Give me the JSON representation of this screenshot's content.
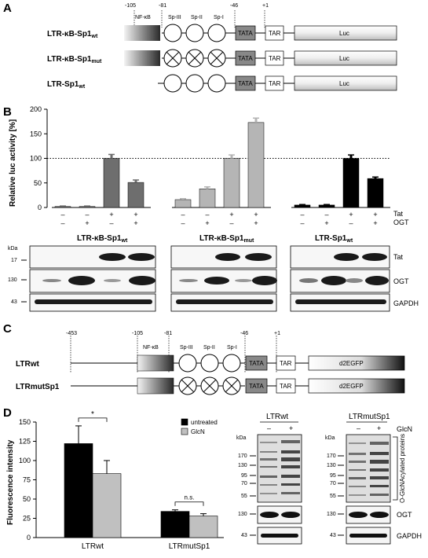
{
  "panel_labels": {
    "a": "A",
    "b": "B",
    "c": "C",
    "d": "D"
  },
  "panel_a": {
    "positions": [
      "-105",
      "-81",
      "-46",
      "+1"
    ],
    "element_labels": {
      "nfkb": "NF-κB",
      "sp3": "Sp-III",
      "sp2": "Sp-II",
      "sp1": "Sp-I",
      "tata": "TATA",
      "tar": "TAR",
      "luc": "Luc"
    },
    "constructs": [
      {
        "name": "LTR-κB-Sp1",
        "sub": "wt"
      },
      {
        "name": "LTR-κB-Sp1",
        "sub": "mut"
      },
      {
        "name": "LTR-Sp1",
        "sub": "wt"
      }
    ]
  },
  "panel_b": {
    "chart_data": {
      "type": "bar",
      "ylabel": "Relative luc activity [%]",
      "ylim": [
        0,
        200
      ],
      "yticks": [
        0,
        50,
        100,
        150,
        200
      ],
      "reference_line": 100,
      "groups": [
        {
          "name": "LTR-κB-Sp1wt",
          "values": [
            2,
            2,
            100,
            51
          ],
          "errors": [
            1,
            1,
            8,
            5
          ],
          "color": "#6e6e6e"
        },
        {
          "name": "LTR-κB-Sp1mut",
          "values": [
            16,
            38,
            100,
            173
          ],
          "errors": [
            2,
            4,
            7,
            9
          ],
          "color": "#b5b5b5"
        },
        {
          "name": "LTR-Sp1wt",
          "values": [
            5,
            5,
            100,
            59
          ],
          "errors": [
            1,
            1,
            7,
            3
          ],
          "color": "#000000"
        }
      ],
      "conditions": {
        "Tat": [
          "–",
          "–",
          "+",
          "+"
        ],
        "OGT": [
          "–",
          "+",
          "–",
          "+"
        ]
      }
    },
    "row_labels": {
      "tat": "Tat",
      "ogt": "OGT"
    },
    "blot": {
      "kda": "kDa",
      "headers": [
        {
          "name": "LTR-κB-Sp1",
          "sub": "wt"
        },
        {
          "name": "LTR-κB-Sp1",
          "sub": "mut"
        },
        {
          "name": "LTR-Sp1",
          "sub": "wt"
        }
      ],
      "markers": [
        "17",
        "130",
        "43"
      ],
      "proteins": [
        "Tat",
        "OGT",
        "GAPDH"
      ]
    }
  },
  "panel_c": {
    "positions": [
      "-453",
      "-105",
      "-81",
      "-46",
      "+1"
    ],
    "element_labels": {
      "nfkb": "NF-κB",
      "sp3": "Sp-III",
      "sp2": "Sp-II",
      "sp1": "Sp-I",
      "tata": "TATA",
      "tar": "TAR",
      "reporter": "d2EGFP"
    },
    "constructs": [
      "LTRwt",
      "LTRmutSp1"
    ]
  },
  "panel_d": {
    "chart_data": {
      "type": "bar",
      "ylabel": "Fluorescence intensity",
      "ylim": [
        0,
        150
      ],
      "yticks": [
        0,
        25,
        50,
        75,
        100,
        125,
        150
      ],
      "categories": [
        "LTRwt",
        "LTRmutSp1"
      ],
      "series": [
        {
          "name": "untreated",
          "values": [
            122,
            34
          ],
          "errors": [
            23,
            2
          ],
          "color": "#000000"
        },
        {
          "name": "GlcN",
          "values": [
            83,
            28
          ],
          "errors": [
            17,
            3
          ],
          "color": "#c0c0c0"
        }
      ],
      "annotations": [
        "*",
        "n.s."
      ]
    },
    "blot": {
      "kda": "kDa",
      "headers": [
        "LTRwt",
        "LTRmutSp1"
      ],
      "glcn_label": "GlcN",
      "signs": [
        "–",
        "+"
      ],
      "markers_top": [
        "170",
        "130",
        "95",
        "70",
        "55"
      ],
      "markers_mid": "130",
      "markers_bot": "43",
      "bracket_label": "O-GlcNAcylated proteins",
      "proteins": [
        "OGT",
        "GAPDH"
      ]
    }
  }
}
